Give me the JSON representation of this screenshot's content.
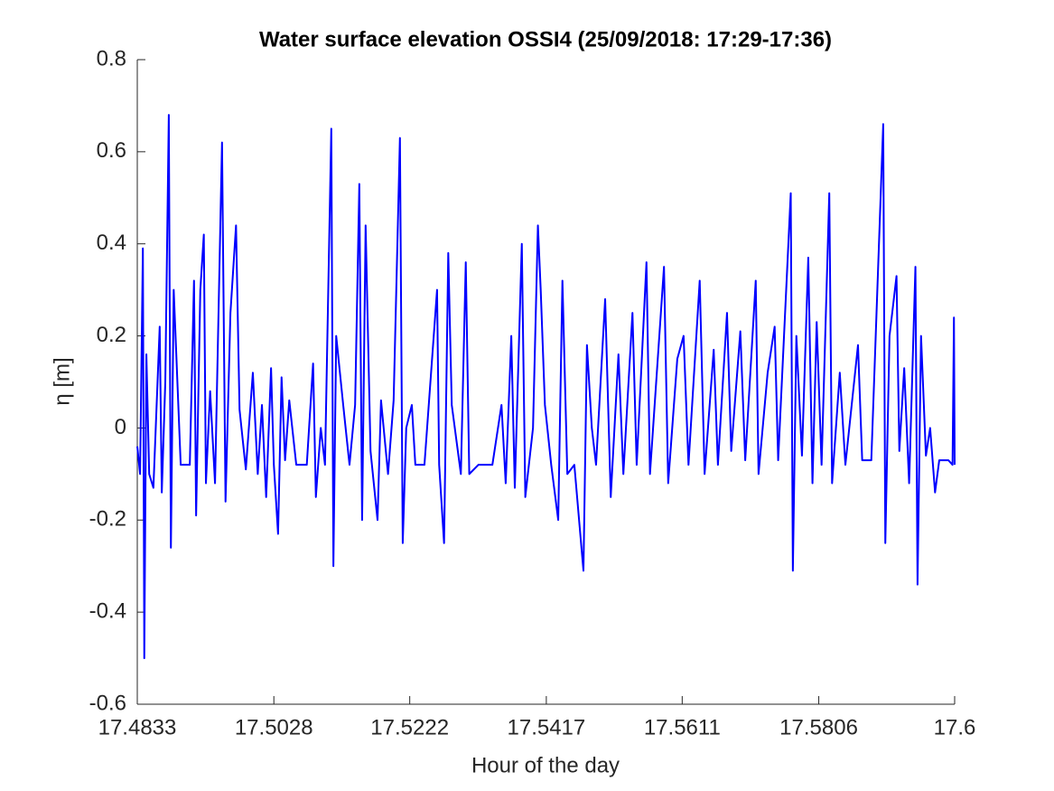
{
  "chart_data": {
    "type": "line",
    "title": "Water surface elevation OSSI4 (25/09/2018: 17:29-17:36)",
    "xlabel": "Hour of the day",
    "ylabel": "η [m]",
    "color": "#0000ff",
    "xlim": [
      17.4833,
      17.6
    ],
    "xticks": [
      17.4833,
      17.5028,
      17.5222,
      17.5417,
      17.5611,
      17.5806,
      17.6
    ],
    "ylim": [
      -0.6,
      0.8
    ],
    "yticks": [
      -0.6,
      -0.4,
      -0.2,
      0,
      0.2,
      0.4,
      0.6,
      0.8
    ],
    "grid": false,
    "x": [
      17.4833,
      17.4837,
      17.4841,
      17.4843,
      17.4846,
      17.485,
      17.4856,
      17.4865,
      17.4868,
      17.4873,
      17.4878,
      17.4881,
      17.4885,
      17.4895,
      17.4908,
      17.4914,
      17.4917,
      17.4923,
      17.4928,
      17.4931,
      17.4937,
      17.4944,
      17.4954,
      17.4959,
      17.4966,
      17.4974,
      17.4979,
      17.4988,
      17.4998,
      17.5005,
      17.5011,
      17.5017,
      17.5024,
      17.5028,
      17.5034,
      17.5039,
      17.5044,
      17.505,
      17.506,
      17.5075,
      17.5084,
      17.5088,
      17.5095,
      17.5101,
      17.511,
      17.5113,
      17.5117,
      17.5127,
      17.5136,
      17.5144,
      17.515,
      17.5154,
      17.5159,
      17.5166,
      17.5176,
      17.5181,
      17.5191,
      17.5199,
      17.5208,
      17.5212,
      17.5217,
      17.5225,
      17.523,
      17.5243,
      17.5261,
      17.5264,
      17.5271,
      17.5277,
      17.5282,
      17.5295,
      17.5302,
      17.5307,
      17.532,
      17.534,
      17.5353,
      17.5359,
      17.5367,
      17.5372,
      17.5382,
      17.5387,
      17.5398,
      17.5405,
      17.5409,
      17.5415,
      17.5424,
      17.5434,
      17.544,
      17.5447,
      17.5457,
      17.547,
      17.5475,
      17.5482,
      17.5488,
      17.5501,
      17.5509,
      17.552,
      17.5527,
      17.554,
      17.5546,
      17.556,
      17.5565,
      17.5585,
      17.5591,
      17.5604,
      17.5613,
      17.562,
      17.5636,
      17.5643,
      17.5656,
      17.5662,
      17.5675,
      17.5681,
      17.5694,
      17.5701,
      17.5716,
      17.572,
      17.5733,
      17.5743,
      17.5748,
      17.5766,
      17.5769,
      17.5774,
      17.5782,
      17.5791,
      17.5797,
      17.5803,
      17.581,
      17.5821,
      17.5825,
      17.5836,
      17.5844,
      17.5862,
      17.5868,
      17.5881,
      17.5898,
      17.5901,
      17.5907,
      17.5917,
      17.5921,
      17.5928,
      17.5935,
      17.5944,
      17.5947,
      17.5952,
      17.5959,
      17.5965,
      17.5972,
      17.5978,
      17.5991,
      17.5997,
      17.5999,
      17.6
    ],
    "values": [
      -0.04,
      -0.1,
      0.39,
      -0.5,
      0.16,
      -0.1,
      -0.13,
      0.22,
      -0.14,
      0.1,
      0.68,
      -0.26,
      0.3,
      -0.08,
      -0.08,
      0.32,
      -0.19,
      0.3,
      0.42,
      -0.12,
      0.08,
      -0.12,
      0.62,
      -0.16,
      0.25,
      0.44,
      0.04,
      -0.09,
      0.12,
      -0.1,
      0.05,
      -0.15,
      0.13,
      -0.08,
      -0.23,
      0.11,
      -0.07,
      0.06,
      -0.08,
      -0.08,
      0.14,
      -0.15,
      0.0,
      -0.08,
      0.65,
      -0.3,
      0.2,
      0.05,
      -0.08,
      0.05,
      0.53,
      -0.2,
      0.44,
      -0.05,
      -0.2,
      0.06,
      -0.1,
      0.06,
      0.63,
      -0.25,
      0.0,
      0.05,
      -0.08,
      -0.08,
      0.3,
      -0.08,
      -0.25,
      0.38,
      0.05,
      -0.1,
      0.36,
      -0.1,
      -0.08,
      -0.08,
      0.05,
      -0.12,
      0.2,
      -0.13,
      0.4,
      -0.15,
      0.0,
      0.44,
      0.3,
      0.05,
      -0.08,
      -0.2,
      0.32,
      -0.1,
      -0.08,
      -0.31,
      0.18,
      0.0,
      -0.08,
      0.28,
      -0.15,
      0.16,
      -0.1,
      0.25,
      -0.08,
      0.36,
      -0.1,
      0.35,
      -0.12,
      0.15,
      0.2,
      -0.08,
      0.32,
      -0.1,
      0.17,
      -0.08,
      0.25,
      -0.05,
      0.21,
      -0.07,
      0.32,
      -0.1,
      0.12,
      0.22,
      -0.07,
      0.51,
      -0.31,
      0.2,
      -0.06,
      0.37,
      -0.12,
      0.23,
      -0.08,
      0.51,
      -0.12,
      0.12,
      -0.08,
      0.18,
      -0.07,
      -0.07,
      0.66,
      -0.25,
      0.2,
      0.33,
      -0.05,
      0.13,
      -0.12,
      0.35,
      -0.34,
      0.2,
      -0.06,
      0.0,
      -0.14,
      -0.07,
      -0.07,
      -0.08,
      0.24,
      -0.08
    ]
  }
}
